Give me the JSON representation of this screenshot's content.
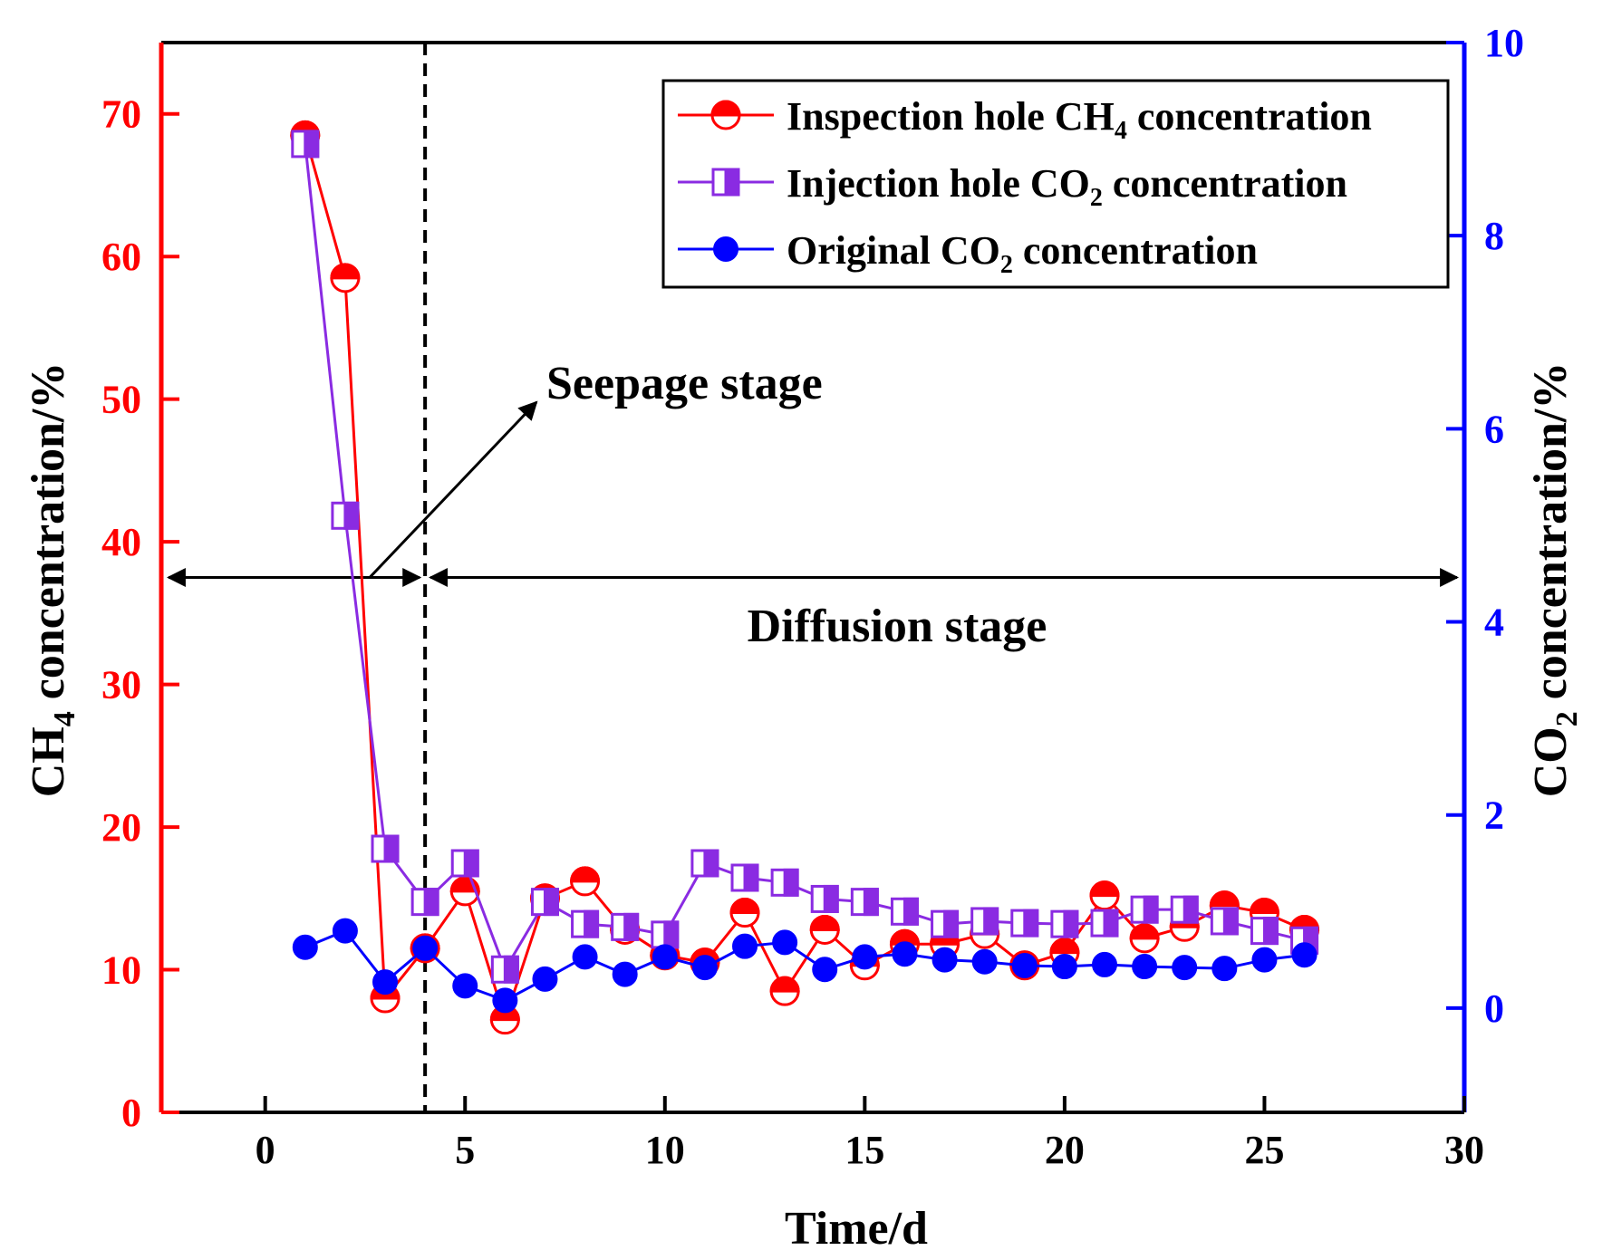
{
  "chart_data": {
    "type": "line",
    "x_axis": {
      "label": "Time/d",
      "range": [
        -2.6,
        30
      ],
      "ticks": [
        0,
        5,
        10,
        15,
        20,
        25,
        30
      ]
    },
    "y_left": {
      "label_main": "CH",
      "label_sub": "4",
      "label_rest": " concentration/%",
      "range": [
        0,
        75
      ],
      "ticks": [
        0,
        10,
        20,
        30,
        40,
        50,
        60,
        70
      ],
      "color": "#ff0000"
    },
    "y_right": {
      "label_main": "CO",
      "label_sub": "2",
      "label_rest": " concentration/%",
      "range": [
        -1.08,
        10
      ],
      "ticks": [
        0,
        2,
        4,
        6,
        8,
        10
      ],
      "color": "#0000ff"
    },
    "x": [
      1,
      2,
      3,
      4,
      5,
      6,
      7,
      8,
      9,
      10,
      11,
      12,
      13,
      14,
      15,
      16,
      17,
      18,
      19,
      20,
      21,
      22,
      23,
      24,
      25,
      26
    ],
    "series": [
      {
        "name": "Inspection hole CH4 concentration",
        "axis": "left",
        "color": "#ff0000",
        "marker": "half-circle",
        "values": [
          68.5,
          58.5,
          8.0,
          11.5,
          15.5,
          6.5,
          15.0,
          16.2,
          12.8,
          11.0,
          10.5,
          14.0,
          8.5,
          12.8,
          10.3,
          11.8,
          11.8,
          12.5,
          10.3,
          11.2,
          15.2,
          12.2,
          13.0,
          14.5,
          14.0,
          12.8
        ]
      },
      {
        "name": "Injection hole CO2 concentration",
        "axis": "right",
        "color": "#8a2be2",
        "marker": "half-square",
        "values": [
          8.95,
          5.1,
          1.65,
          1.1,
          1.5,
          0.4,
          1.1,
          0.87,
          0.84,
          0.76,
          1.5,
          1.35,
          1.3,
          1.13,
          1.1,
          1.0,
          0.87,
          0.9,
          0.88,
          0.87,
          0.88,
          1.02,
          1.02,
          0.9,
          0.8,
          0.7
        ]
      },
      {
        "name": "Original CO2 concentration",
        "axis": "right",
        "color": "#0000ff",
        "marker": "circle",
        "values": [
          0.63,
          0.8,
          0.27,
          0.62,
          0.23,
          0.08,
          0.3,
          0.53,
          0.35,
          0.53,
          0.42,
          0.64,
          0.68,
          0.4,
          0.53,
          0.56,
          0.5,
          0.48,
          0.44,
          0.43,
          0.45,
          0.43,
          0.42,
          0.41,
          0.5,
          0.55
        ]
      }
    ],
    "legend": {
      "position": "top-right",
      "entries": [
        {
          "main": "Inspection hole CH",
          "sub": "4",
          "rest": " concentration"
        },
        {
          "main": "Injection hole CO",
          "sub": "2",
          "rest": " concentration"
        },
        {
          "main": "Original CO",
          "sub": "2",
          "rest": " concentration"
        }
      ]
    },
    "annotations": {
      "divider_x": 4,
      "seepage_label": "Seepage stage",
      "diffusion_label": "Diffusion stage",
      "stage_arrow_y_left": 37.5
    }
  }
}
